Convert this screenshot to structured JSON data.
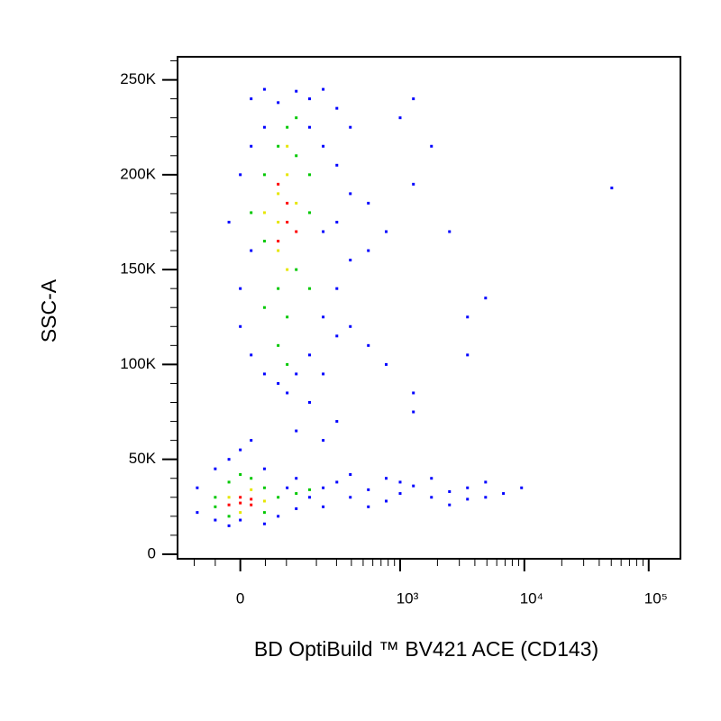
{
  "chart_data": {
    "type": "scatter",
    "x_label": "BD OptiBuild ™ BV421 ACE (CD143)",
    "y_label": "SSC-A",
    "xscale": "biexponential",
    "xlim": [
      -150,
      180000
    ],
    "ylim": [
      -2400,
      262144
    ],
    "xticks": [
      0,
      {
        "value": 1000,
        "label": "10³"
      },
      {
        "value": 10000,
        "label": "10⁴"
      },
      {
        "value": 100000,
        "label": "10⁵"
      }
    ],
    "xminorticks": [
      -100,
      -50,
      50,
      100,
      200,
      300,
      400,
      500,
      600,
      700,
      800,
      900,
      2000,
      3000,
      4000,
      5000,
      6000,
      7000,
      8000,
      9000,
      20000,
      30000,
      40000,
      50000,
      60000,
      70000,
      80000,
      90000
    ],
    "yticks": [
      0,
      {
        "value": 50000,
        "label": "50K"
      },
      {
        "value": 100000,
        "label": "100K"
      },
      {
        "value": 150000,
        "label": "150K"
      },
      {
        "value": 200000,
        "label": "200K"
      },
      {
        "value": 250000,
        "label": "250K"
      }
    ],
    "yminorticks": [
      10000,
      20000,
      30000,
      40000,
      60000,
      70000,
      80000,
      90000,
      110000,
      120000,
      130000,
      140000,
      160000,
      170000,
      180000,
      190000,
      210000,
      220000,
      230000,
      240000,
      260000
    ],
    "series": [
      {
        "color": "#0000ff",
        "x": [
          0,
          21,
          48,
          79,
          128,
          173,
          230,
          302,
          392,
          302,
          392,
          552,
          771,
          552,
          392,
          302,
          230,
          302,
          173,
          128,
          79,
          48,
          21,
          0,
          -22,
          0,
          21,
          230,
          173,
          48,
          21,
          230,
          302,
          392,
          552,
          230,
          102,
          173,
          230,
          128,
          302,
          771,
          1280,
          1790,
          1000,
          1280,
          4880,
          3490,
          2500,
          50500,
          1280,
          1280,
          3490,
          -92,
          -92,
          -50,
          -50,
          -22,
          0,
          21,
          48,
          79,
          102,
          128,
          173,
          230,
          302,
          392,
          552,
          771,
          1000,
          1280,
          1790,
          2500,
          3490,
          4880,
          6790,
          9500,
          392,
          771,
          1790,
          2500,
          552,
          -22,
          0,
          48,
          128,
          230,
          1000,
          3490,
          4880
        ],
        "values": [
          120000,
          240000,
          245000,
          238000,
          244000,
          240000,
          245000,
          235000,
          225000,
          205000,
          190000,
          185000,
          170000,
          160000,
          155000,
          140000,
          125000,
          115000,
          105000,
          95000,
          90000,
          95000,
          105000,
          140000,
          175000,
          200000,
          215000,
          215000,
          225000,
          225000,
          160000,
          170000,
          175000,
          120000,
          110000,
          95000,
          85000,
          80000,
          60000,
          65000,
          70000,
          100000,
          195000,
          215000,
          230000,
          240000,
          135000,
          105000,
          170000,
          193000,
          85000,
          75000,
          125000,
          22000,
          35000,
          18000,
          45000,
          50000,
          55000,
          60000,
          45000,
          20000,
          35000,
          40000,
          30000,
          35000,
          38000,
          30000,
          34000,
          28000,
          32000,
          36000,
          30000,
          33000,
          29000,
          38000,
          32000,
          35000,
          42000,
          40000,
          40000,
          26000,
          25000,
          15000,
          18000,
          16000,
          24000,
          25000,
          38000,
          35000,
          30000
        ]
      },
      {
        "color": "#00c800",
        "x": [
          48,
          79,
          102,
          128,
          48,
          79,
          102,
          128,
          173,
          79,
          102,
          173,
          21,
          48,
          173,
          128,
          -50,
          -22,
          0,
          21,
          48,
          79,
          -50,
          -22,
          48,
          128,
          173
        ],
        "values": [
          200000,
          215000,
          225000,
          210000,
          165000,
          140000,
          125000,
          150000,
          180000,
          110000,
          100000,
          140000,
          180000,
          130000,
          200000,
          230000,
          30000,
          38000,
          42000,
          40000,
          35000,
          30000,
          25000,
          20000,
          22000,
          32000,
          34000
        ]
      },
      {
        "color": "#e6e600",
        "x": [
          79,
          102,
          128,
          79,
          102,
          79,
          102,
          48,
          -22,
          21,
          48,
          0
        ],
        "values": [
          190000,
          200000,
          185000,
          160000,
          150000,
          175000,
          215000,
          180000,
          30000,
          34000,
          28000,
          22000
        ]
      },
      {
        "color": "#ff0000",
        "x": [
          102,
          79,
          102,
          128,
          79,
          0,
          21,
          -22,
          0,
          21
        ],
        "values": [
          175000,
          165000,
          185000,
          170000,
          195000,
          27000,
          26000,
          26000,
          30000,
          29000
        ]
      }
    ]
  }
}
